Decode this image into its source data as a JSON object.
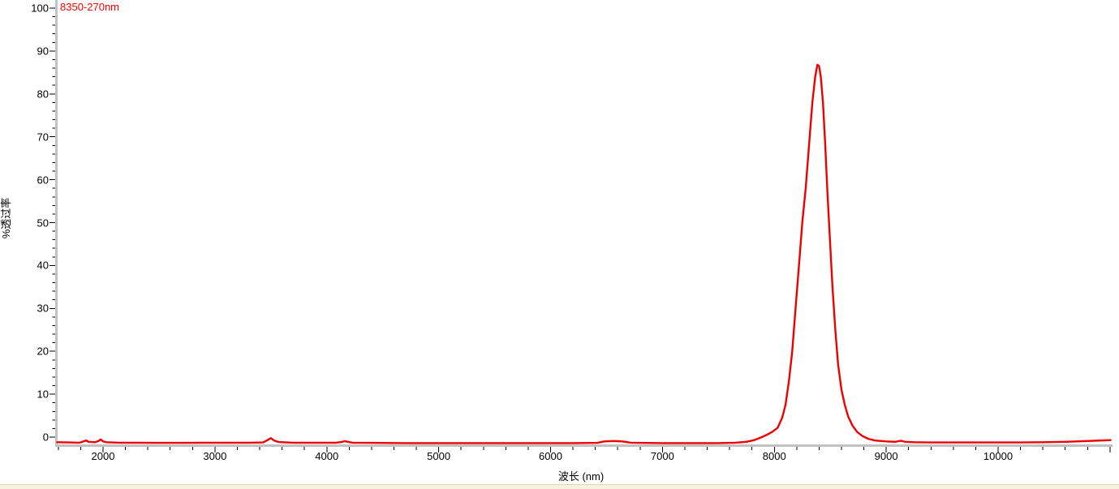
{
  "chart_data": {
    "type": "line",
    "title": "",
    "xlabel": "波长 (nm)",
    "ylabel": "%透过率",
    "grid": false,
    "legend_position": "top-left-inside",
    "x_axis": {
      "min": 1587,
      "max": 11005,
      "major_tick": 1000,
      "minor_tick": 200,
      "tick_labels": [
        2000,
        3000,
        4000,
        5000,
        6000,
        7000,
        8000,
        9000,
        10000
      ]
    },
    "y_axis": {
      "min": -2,
      "max": 102,
      "major_tick": 10,
      "minor_tick": 2,
      "tick_labels": [
        0,
        10,
        20,
        30,
        40,
        50,
        60,
        70,
        80,
        90,
        100
      ]
    },
    "colors": {
      "series": "#ee0000",
      "legend_text": "#ff0000",
      "axis_line": "#c2c2c2",
      "tick": "#000000",
      "background": "#ffffff",
      "bottom_strip_fill": "#f7f2e0",
      "bottom_strip_border": "#ddd6b8"
    },
    "series": [
      {
        "name": "8350-270nm",
        "color": "#ee0000",
        "peak_wavelength_nm": 8385,
        "peak_transmittance_pct": 86.8,
        "fwhm_nm": 270,
        "baseline_pct": -1.3,
        "points": [
          [
            1590,
            -1.2
          ],
          [
            1700,
            -1.25
          ],
          [
            1790,
            -1.3
          ],
          [
            1830,
            -0.95
          ],
          [
            1850,
            -0.8
          ],
          [
            1870,
            -1.1
          ],
          [
            1930,
            -1.2
          ],
          [
            1960,
            -0.9
          ],
          [
            1980,
            -0.55
          ],
          [
            2000,
            -1.0
          ],
          [
            2030,
            -1.2
          ],
          [
            2150,
            -1.3
          ],
          [
            2300,
            -1.3
          ],
          [
            2500,
            -1.35
          ],
          [
            2700,
            -1.35
          ],
          [
            2900,
            -1.3
          ],
          [
            3100,
            -1.3
          ],
          [
            3300,
            -1.3
          ],
          [
            3430,
            -1.25
          ],
          [
            3470,
            -0.7
          ],
          [
            3500,
            -0.25
          ],
          [
            3530,
            -0.8
          ],
          [
            3570,
            -1.15
          ],
          [
            3700,
            -1.3
          ],
          [
            3900,
            -1.3
          ],
          [
            4080,
            -1.3
          ],
          [
            4130,
            -1.15
          ],
          [
            4160,
            -0.95
          ],
          [
            4190,
            -1.1
          ],
          [
            4230,
            -1.3
          ],
          [
            4400,
            -1.35
          ],
          [
            4700,
            -1.4
          ],
          [
            5000,
            -1.4
          ],
          [
            5300,
            -1.4
          ],
          [
            5600,
            -1.4
          ],
          [
            5900,
            -1.4
          ],
          [
            6200,
            -1.4
          ],
          [
            6420,
            -1.35
          ],
          [
            6480,
            -1.0
          ],
          [
            6560,
            -0.9
          ],
          [
            6640,
            -1.0
          ],
          [
            6720,
            -1.3
          ],
          [
            7000,
            -1.4
          ],
          [
            7300,
            -1.4
          ],
          [
            7500,
            -1.4
          ],
          [
            7650,
            -1.3
          ],
          [
            7750,
            -1.1
          ],
          [
            7820,
            -0.7
          ],
          [
            7880,
            -0.1
          ],
          [
            7930,
            0.5
          ],
          [
            7980,
            1.2
          ],
          [
            8030,
            2.2
          ],
          [
            8070,
            4.5
          ],
          [
            8100,
            7.5
          ],
          [
            8130,
            13
          ],
          [
            8160,
            20
          ],
          [
            8190,
            30
          ],
          [
            8220,
            40
          ],
          [
            8250,
            50
          ],
          [
            8280,
            58
          ],
          [
            8310,
            68
          ],
          [
            8340,
            78
          ],
          [
            8365,
            84
          ],
          [
            8385,
            86.8
          ],
          [
            8400,
            86.5
          ],
          [
            8415,
            84
          ],
          [
            8435,
            78
          ],
          [
            8455,
            68
          ],
          [
            8475,
            57
          ],
          [
            8495,
            47
          ],
          [
            8520,
            35
          ],
          [
            8545,
            25
          ],
          [
            8570,
            17
          ],
          [
            8600,
            11
          ],
          [
            8630,
            7.5
          ],
          [
            8660,
            4.8
          ],
          [
            8700,
            2.6
          ],
          [
            8740,
            1.2
          ],
          [
            8790,
            0.2
          ],
          [
            8840,
            -0.4
          ],
          [
            8900,
            -0.8
          ],
          [
            9000,
            -1.0
          ],
          [
            9080,
            -1.1
          ],
          [
            9130,
            -0.85
          ],
          [
            9170,
            -1.1
          ],
          [
            9250,
            -1.2
          ],
          [
            9400,
            -1.25
          ],
          [
            9600,
            -1.25
          ],
          [
            9800,
            -1.25
          ],
          [
            10000,
            -1.25
          ],
          [
            10200,
            -1.25
          ],
          [
            10400,
            -1.2
          ],
          [
            10600,
            -1.1
          ],
          [
            10800,
            -0.9
          ],
          [
            10950,
            -0.75
          ],
          [
            11005,
            -0.7
          ]
        ]
      }
    ]
  }
}
